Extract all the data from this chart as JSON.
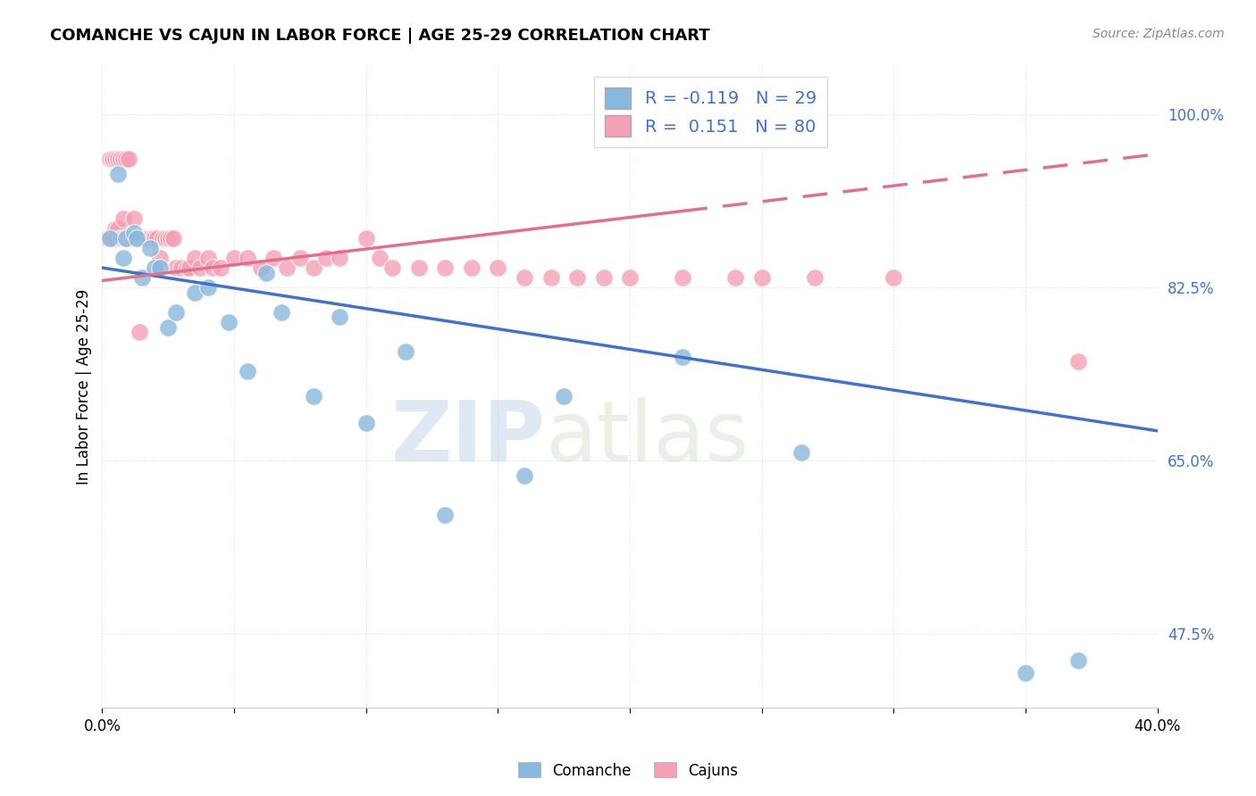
{
  "title": "COMANCHE VS CAJUN IN LABOR FORCE | AGE 25-29 CORRELATION CHART",
  "source": "Source: ZipAtlas.com",
  "ylabel": "In Labor Force | Age 25-29",
  "xlim": [
    0.0,
    0.4
  ],
  "ylim": [
    0.4,
    1.05
  ],
  "ytick_labels": [
    "100.0%",
    "82.5%",
    "65.0%",
    "47.5%"
  ],
  "ytick_values": [
    1.0,
    0.825,
    0.65,
    0.475
  ],
  "xtick_labels": [
    "0.0%",
    "40.0%"
  ],
  "xtick_values": [
    0.0,
    0.4
  ],
  "grid_yticks": [
    1.0,
    0.825,
    0.65,
    0.475
  ],
  "grid_xticks": [
    0.0,
    0.05,
    0.1,
    0.15,
    0.2,
    0.25,
    0.3,
    0.35,
    0.4
  ],
  "grid_color": "#dddddd",
  "comanche_R": -0.119,
  "comanche_N": 29,
  "cajun_R": 0.151,
  "cajun_N": 80,
  "comanche_color": "#89b8de",
  "cajun_color": "#f4a0b5",
  "comanche_line_color": "#4472c4",
  "cajun_line_color": "#e07090",
  "comanche_x": [
    0.003,
    0.006,
    0.008,
    0.009,
    0.012,
    0.013,
    0.015,
    0.018,
    0.02,
    0.022,
    0.025,
    0.028,
    0.035,
    0.04,
    0.048,
    0.055,
    0.062,
    0.068,
    0.08,
    0.09,
    0.1,
    0.115,
    0.13,
    0.16,
    0.175,
    0.22,
    0.265,
    0.35,
    0.37
  ],
  "comanche_y": [
    0.875,
    0.94,
    0.855,
    0.875,
    0.88,
    0.875,
    0.835,
    0.865,
    0.845,
    0.845,
    0.785,
    0.8,
    0.82,
    0.825,
    0.79,
    0.74,
    0.84,
    0.8,
    0.715,
    0.795,
    0.688,
    0.76,
    0.595,
    0.635,
    0.715,
    0.755,
    0.658,
    0.435,
    0.448
  ],
  "cajun_x": [
    0.002,
    0.003,
    0.004,
    0.005,
    0.005,
    0.006,
    0.007,
    0.008,
    0.008,
    0.009,
    0.009,
    0.01,
    0.011,
    0.011,
    0.012,
    0.012,
    0.013,
    0.013,
    0.014,
    0.015,
    0.015,
    0.016,
    0.016,
    0.017,
    0.018,
    0.018,
    0.019,
    0.02,
    0.021,
    0.022,
    0.023,
    0.024,
    0.025,
    0.026,
    0.027,
    0.028,
    0.03,
    0.032,
    0.033,
    0.035,
    0.037,
    0.04,
    0.042,
    0.045,
    0.05,
    0.055,
    0.06,
    0.065,
    0.07,
    0.075,
    0.08,
    0.085,
    0.09,
    0.1,
    0.105,
    0.11,
    0.12,
    0.13,
    0.14,
    0.15,
    0.16,
    0.17,
    0.18,
    0.19,
    0.2,
    0.22,
    0.24,
    0.25,
    0.27,
    0.3,
    0.003,
    0.004,
    0.005,
    0.006,
    0.007,
    0.008,
    0.009,
    0.01,
    0.014,
    0.37
  ],
  "cajun_y": [
    0.875,
    0.875,
    0.875,
    0.885,
    0.875,
    0.885,
    0.875,
    0.895,
    0.875,
    0.875,
    0.875,
    0.875,
    0.875,
    0.875,
    0.895,
    0.875,
    0.875,
    0.875,
    0.875,
    0.875,
    0.875,
    0.875,
    0.875,
    0.875,
    0.875,
    0.875,
    0.875,
    0.875,
    0.875,
    0.855,
    0.875,
    0.875,
    0.875,
    0.875,
    0.875,
    0.845,
    0.845,
    0.845,
    0.845,
    0.855,
    0.845,
    0.855,
    0.845,
    0.845,
    0.855,
    0.855,
    0.845,
    0.855,
    0.845,
    0.855,
    0.845,
    0.855,
    0.855,
    0.875,
    0.855,
    0.845,
    0.845,
    0.845,
    0.845,
    0.845,
    0.835,
    0.835,
    0.835,
    0.835,
    0.835,
    0.835,
    0.835,
    0.835,
    0.835,
    0.835,
    0.955,
    0.955,
    0.955,
    0.955,
    0.955,
    0.955,
    0.955,
    0.955,
    0.78,
    0.75
  ]
}
